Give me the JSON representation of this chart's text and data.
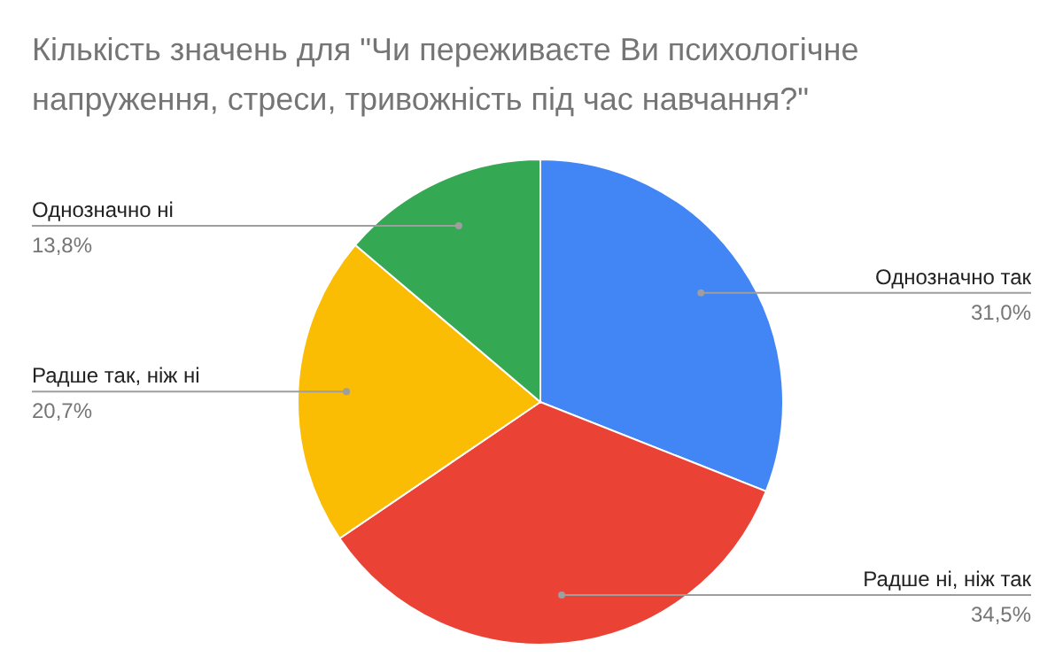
{
  "chart_data": {
    "type": "pie",
    "title": "Кількість значень для \"Чи переживаєте Ви психологічне напруження, стреси, тривожність під час навчання?\"",
    "categories": [
      "Однозначно так",
      "Радше ні, ніж так",
      "Радше так, ніж ні",
      "Однозначно ні"
    ],
    "values": [
      31.0,
      34.5,
      20.7,
      13.8
    ],
    "colors": [
      "#4285f4",
      "#ea4335",
      "#fbbc04",
      "#34a853"
    ],
    "value_labels": [
      "31,0%",
      "34,5%",
      "20,7%",
      "13,8%"
    ],
    "legend": false
  }
}
